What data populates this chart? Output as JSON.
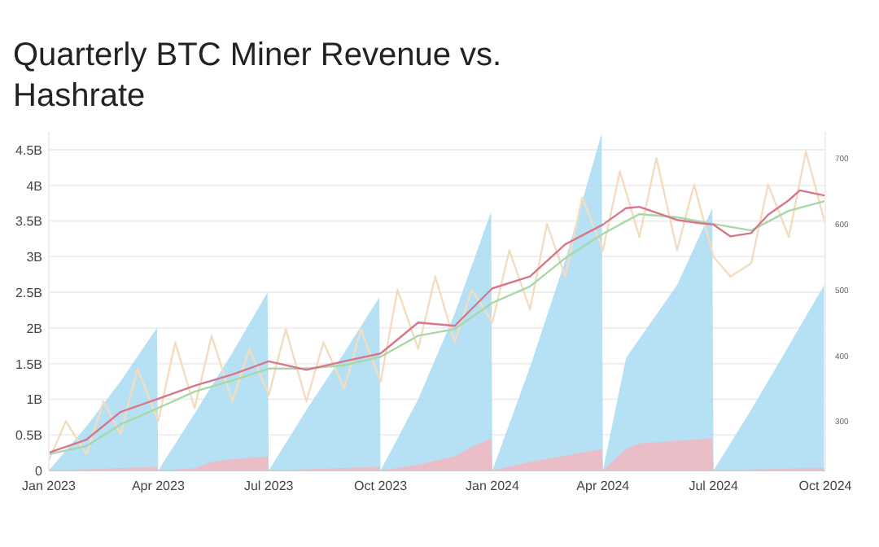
{
  "chart_data": {
    "type": "area",
    "title": "Quarterly BTC Miner Revenue vs. Hashrate",
    "xlim": [
      "2023-01-01",
      "2024-10-01"
    ],
    "xticks": [
      {
        "value": "2023-01-01",
        "label": "Jan 2023"
      },
      {
        "value": "2023-04-01",
        "label": "Apr 2023"
      },
      {
        "value": "2023-07-01",
        "label": "Jul 2023"
      },
      {
        "value": "2023-10-01",
        "label": "Oct 2023"
      },
      {
        "value": "2024-01-01",
        "label": "Jan 2024"
      },
      {
        "value": "2024-04-01",
        "label": "Apr 2024"
      },
      {
        "value": "2024-07-01",
        "label": "Jul 2024"
      },
      {
        "value": "2024-10-01",
        "label": "Oct 2024"
      }
    ],
    "ylim": [
      0,
      4.75
    ],
    "yticks": [
      0,
      {
        "value": 0.5,
        "label": "0.5B"
      },
      {
        "value": 1,
        "label": "1B"
      },
      {
        "value": 1.5,
        "label": "1.5B"
      },
      {
        "value": 2,
        "label": "2B"
      },
      {
        "value": 2.5,
        "label": "2.5B"
      },
      {
        "value": 3,
        "label": "3B"
      },
      {
        "value": 3.5,
        "label": "3.5B"
      },
      {
        "value": 4,
        "label": "4B"
      },
      {
        "value": 4.5,
        "label": "4.5B"
      }
    ],
    "y2lim": [
      225,
      740
    ],
    "y2ticks": [
      300,
      400,
      500,
      600,
      700
    ],
    "grid": "y",
    "marker": "none",
    "line_style": "solid",
    "series": [
      {
        "type": "line",
        "axis": "y2",
        "color": "#f3dcc0",
        "x": [
          "2023-01-01",
          "2023-01-15",
          "2023-02-01",
          "2023-02-15",
          "2023-03-01",
          "2023-03-15",
          "2023-04-01",
          "2023-04-15",
          "2023-05-01",
          "2023-05-15",
          "2023-06-01",
          "2023-06-15",
          "2023-07-01",
          "2023-07-15",
          "2023-08-01",
          "2023-08-15",
          "2023-09-01",
          "2023-09-15",
          "2023-10-01",
          "2023-10-15",
          "2023-11-01",
          "2023-11-15",
          "2023-12-01",
          "2023-12-15",
          "2024-01-01",
          "2024-01-15",
          "2024-02-01",
          "2024-02-15",
          "2024-03-01",
          "2024-03-15",
          "2024-04-01",
          "2024-04-15",
          "2024-05-01",
          "2024-05-15",
          "2024-06-01",
          "2024-06-15",
          "2024-07-01",
          "2024-07-15",
          "2024-08-01",
          "2024-08-15",
          "2024-09-01",
          "2024-09-15",
          "2024-10-01"
        ],
        "values": [
          240,
          300,
          250,
          330,
          280,
          380,
          300,
          420,
          320,
          430,
          330,
          410,
          340,
          440,
          330,
          420,
          350,
          440,
          360,
          500,
          410,
          520,
          420,
          500,
          450,
          560,
          470,
          600,
          520,
          640,
          560,
          680,
          580,
          700,
          560,
          660,
          550,
          520,
          540,
          660,
          580,
          710,
          600
        ]
      },
      {
        "type": "line",
        "axis": "y2",
        "color": "#a8d8a8",
        "x": [
          "2023-01-01",
          "2023-02-01",
          "2023-03-01",
          "2023-04-01",
          "2023-05-01",
          "2023-06-01",
          "2023-07-01",
          "2023-08-01",
          "2023-09-01",
          "2023-10-01",
          "2023-11-01",
          "2023-12-01",
          "2024-01-01",
          "2024-02-01",
          "2024-03-01",
          "2024-04-01",
          "2024-05-01",
          "2024-06-01",
          "2024-07-01",
          "2024-08-01",
          "2024-09-01",
          "2024-10-01"
        ],
        "values": [
          250,
          262,
          295,
          320,
          345,
          362,
          380,
          380,
          385,
          398,
          430,
          440,
          480,
          505,
          548,
          585,
          615,
          610,
          600,
          590,
          620,
          635
        ]
      },
      {
        "type": "line",
        "axis": "y2",
        "color": "#d9768a",
        "x": [
          "2023-01-01",
          "2023-02-01",
          "2023-03-01",
          "2023-04-01",
          "2023-05-01",
          "2023-06-01",
          "2023-07-01",
          "2023-08-01",
          "2023-09-01",
          "2023-10-01",
          "2023-11-01",
          "2023-12-01",
          "2024-01-01",
          "2024-02-01",
          "2024-03-01",
          "2024-04-01",
          "2024-04-20",
          "2024-05-01",
          "2024-06-01",
          "2024-06-20",
          "2024-07-01",
          "2024-07-15",
          "2024-08-01",
          "2024-08-15",
          "2024-09-01",
          "2024-09-10",
          "2024-10-01"
        ],
        "values": [
          252,
          272,
          314,
          334,
          354,
          371,
          391,
          378,
          391,
          403,
          450,
          445,
          502,
          520,
          569,
          599,
          624,
          626,
          606,
          601,
          599,
          581,
          586,
          614,
          636,
          651,
          643
        ]
      },
      {
        "type": "area",
        "color": "#a9dcf2",
        "x": [
          "2023-01-01",
          "2023-02-01",
          "2023-03-01",
          "2023-03-31",
          "2023-04-01",
          "2023-05-01",
          "2023-06-01",
          "2023-06-30",
          "2023-07-01",
          "2023-08-01",
          "2023-09-01",
          "2023-09-30",
          "2023-10-01",
          "2023-11-01",
          "2023-12-01",
          "2023-12-31",
          "2024-01-01",
          "2024-02-01",
          "2024-03-01",
          "2024-03-31",
          "2024-04-01",
          "2024-04-20",
          "2024-06-01",
          "2024-06-30",
          "2024-07-01",
          "2024-08-01",
          "2024-09-01",
          "2024-09-30"
        ],
        "values": [
          0,
          0.62,
          1.25,
          2.0,
          0,
          0.8,
          1.65,
          2.5,
          0,
          0.85,
          1.65,
          2.43,
          0,
          1.0,
          2.2,
          3.63,
          0,
          1.45,
          2.95,
          4.73,
          0,
          1.58,
          2.6,
          3.68,
          0,
          0.85,
          1.75,
          2.6
        ]
      },
      {
        "type": "area",
        "color": "#f5b7be",
        "x": [
          "2023-01-01",
          "2023-03-31",
          "2023-04-01",
          "2023-05-01",
          "2023-05-15",
          "2023-06-01",
          "2023-06-30",
          "2023-07-01",
          "2023-09-30",
          "2023-10-01",
          "2023-11-01",
          "2023-12-01",
          "2023-12-15",
          "2023-12-31",
          "2024-01-01",
          "2024-02-01",
          "2024-03-31",
          "2024-04-01",
          "2024-04-20",
          "2024-05-01",
          "2024-06-30",
          "2024-07-01",
          "2024-09-30"
        ],
        "values": [
          0,
          0.05,
          0,
          0.03,
          0.12,
          0.16,
          0.2,
          0,
          0.05,
          0,
          0.08,
          0.2,
          0.33,
          0.45,
          0,
          0.12,
          0.3,
          0,
          0.3,
          0.38,
          0.45,
          0,
          0.04
        ]
      }
    ]
  }
}
